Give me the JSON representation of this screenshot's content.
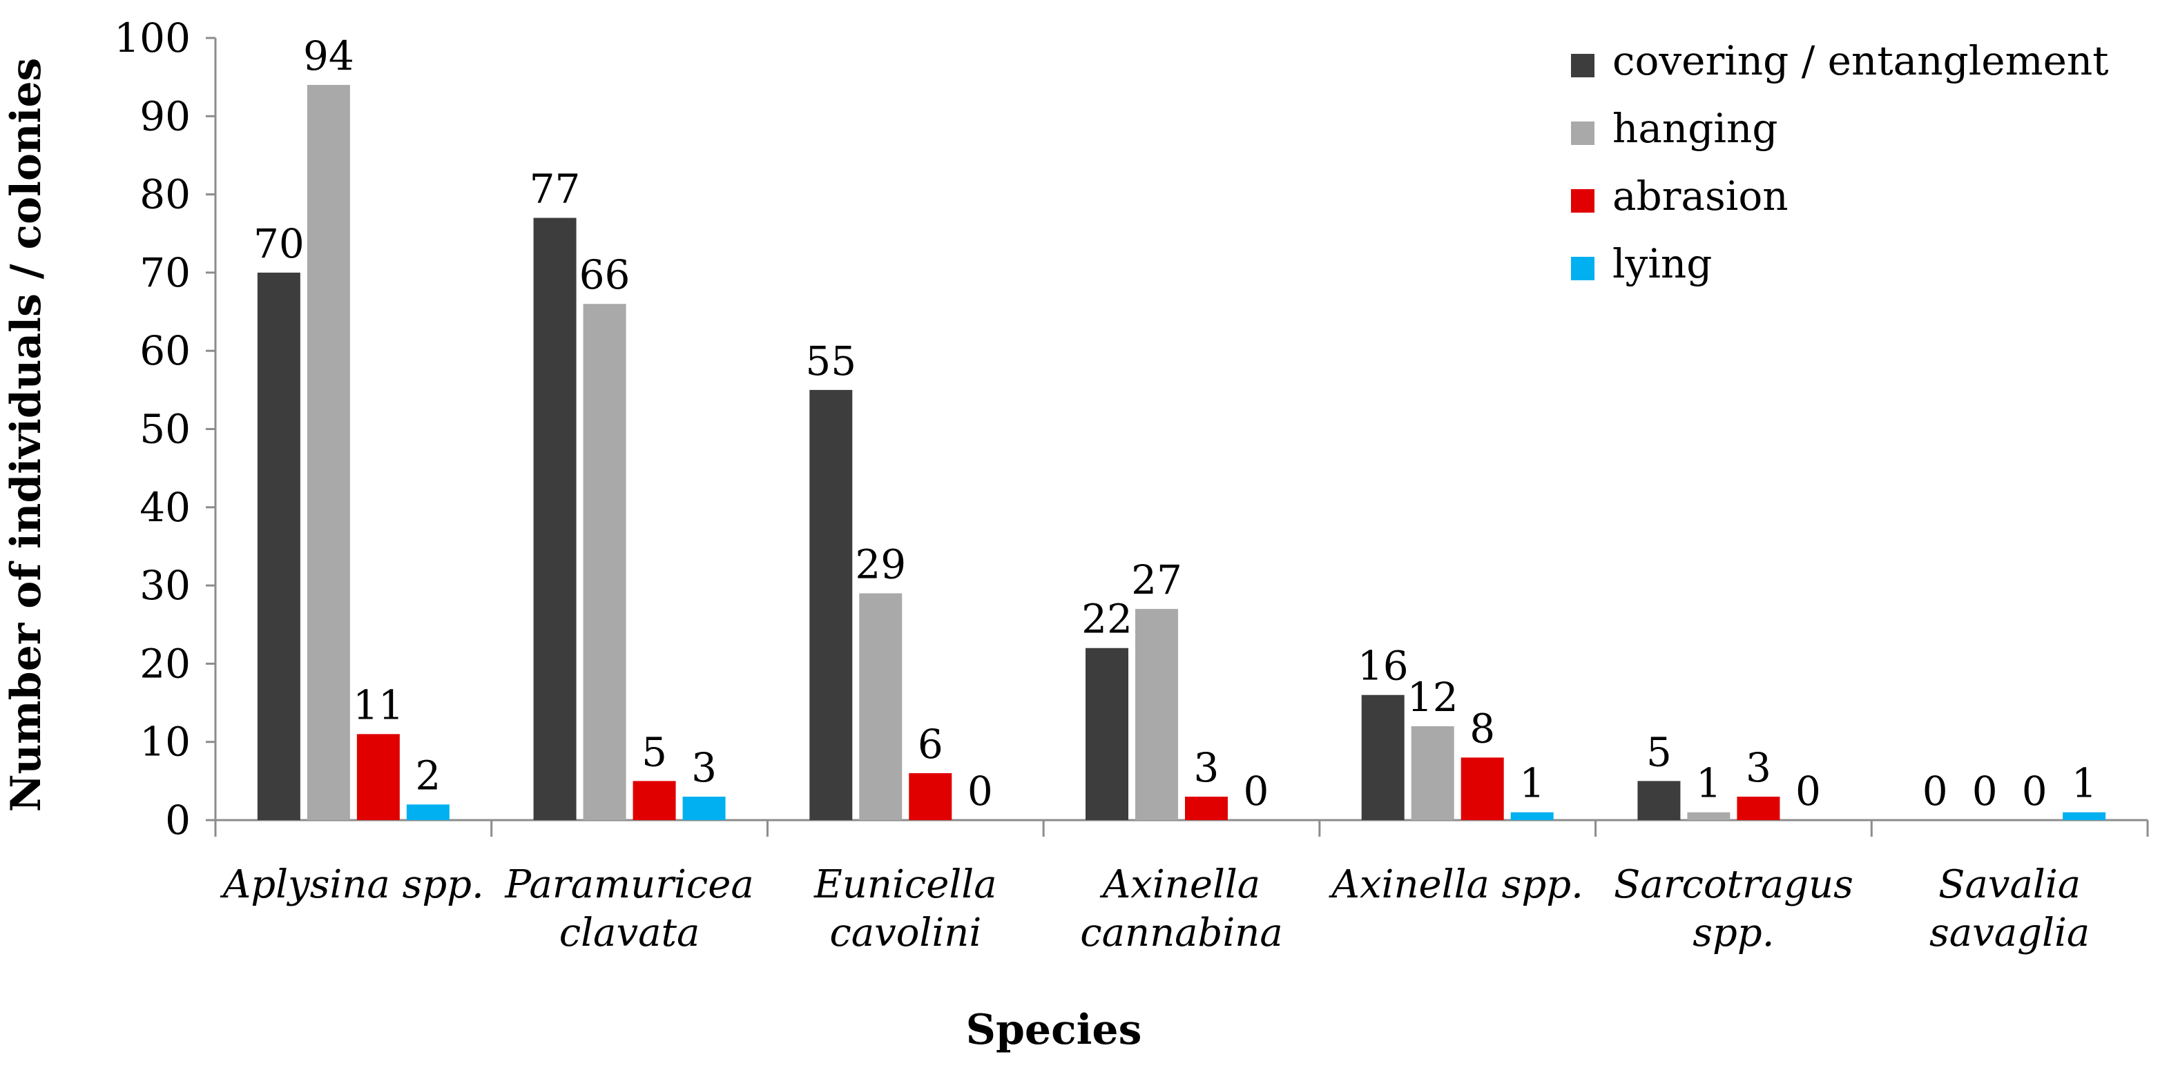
{
  "chart_data": {
    "type": "bar",
    "categories": [
      [
        "Aplysina spp."
      ],
      [
        "Paramuricea",
        "clavata"
      ],
      [
        "Eunicella",
        "cavolini"
      ],
      [
        "Axinella",
        "cannabina"
      ],
      [
        "Axinella spp."
      ],
      [
        "Sarcotragus",
        "spp."
      ],
      [
        "Savalia",
        "savaglia"
      ]
    ],
    "series": [
      {
        "name": "covering / entanglement",
        "color": "#3d3d3d",
        "values": [
          70,
          77,
          55,
          22,
          16,
          5,
          0
        ]
      },
      {
        "name": "hanging",
        "color": "#a9a9a9",
        "values": [
          94,
          66,
          29,
          27,
          12,
          1,
          0
        ]
      },
      {
        "name": "abrasion",
        "color": "#e00000",
        "values": [
          11,
          5,
          6,
          3,
          8,
          3,
          0
        ]
      },
      {
        "name": "lying",
        "color": "#00b0f0",
        "values": [
          2,
          3,
          0,
          0,
          1,
          0,
          1
        ]
      }
    ],
    "xlabel": "Species",
    "ylabel": "Number of individuals / colonies",
    "ylim": [
      0,
      100
    ],
    "yticks": [
      0,
      10,
      20,
      30,
      40,
      50,
      60,
      70,
      80,
      90,
      100
    ],
    "legend_position": "top-right",
    "grid": false,
    "data_labels": true
  }
}
